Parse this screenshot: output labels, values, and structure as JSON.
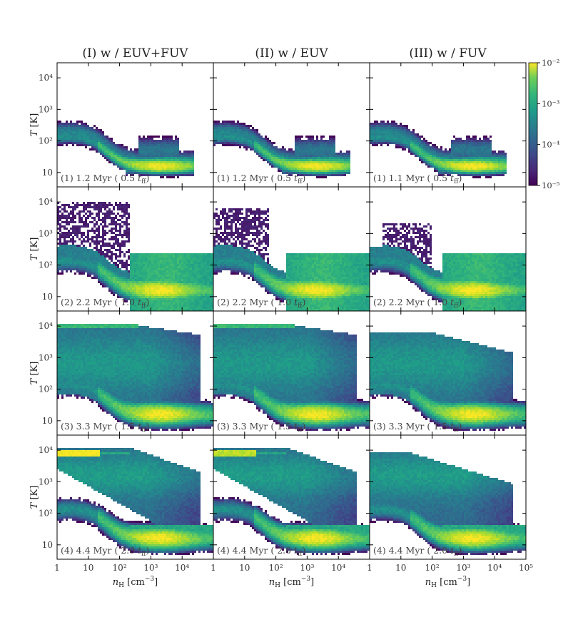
{
  "chart_data": {
    "type": "heatmap",
    "grid": {
      "rows": 4,
      "cols": 3
    },
    "column_titles": [
      "(I) w / EUV+FUV",
      "(II) w / EUV",
      "(III) w / FUV"
    ],
    "xlabel": "n_H [cm^-3]",
    "ylabel": "T [K]",
    "x_scale": "log",
    "y_scale": "log",
    "xlim": [
      1,
      100000
    ],
    "ylim": [
      3.5,
      30000
    ],
    "x_ticks": [
      {
        "value": 1,
        "label": "1"
      },
      {
        "value": 10,
        "label": "10"
      },
      {
        "value": 100,
        "label": "10²"
      },
      {
        "value": 1000,
        "label": "10³"
      },
      {
        "value": 10000,
        "label": "10⁴"
      }
    ],
    "x_tick_last_col_extra": {
      "value": 100000,
      "label": "10⁵"
    },
    "y_ticks": [
      {
        "value": 10,
        "label": "10"
      },
      {
        "value": 100,
        "label": "10²"
      },
      {
        "value": 1000,
        "label": "10³"
      },
      {
        "value": 10000,
        "label": "10⁴"
      }
    ],
    "colorbar": {
      "scale": "log",
      "range": [
        1e-05,
        0.01
      ],
      "tick_labels": [
        "10⁻²",
        "10⁻³",
        "10⁻⁴",
        "10⁻⁵"
      ],
      "colormap": "viridis"
    },
    "panels": [
      {
        "row": 1,
        "col": 1,
        "label": "(1) 1.2 Myr ( 0.5 t_ff)"
      },
      {
        "row": 1,
        "col": 2,
        "label": "(1) 1.2 Myr ( 0.5 t_ff)"
      },
      {
        "row": 1,
        "col": 3,
        "label": "(1) 1.1 Myr ( 0.5 t_ff)"
      },
      {
        "row": 2,
        "col": 1,
        "label": "(2) 2.2 Myr ( 1.0 t_ff)"
      },
      {
        "row": 2,
        "col": 2,
        "label": "(2) 2.2 Myr ( 1.0 t_ff)"
      },
      {
        "row": 2,
        "col": 3,
        "label": "(2) 2.2 Myr ( 1.0 t_ff)"
      },
      {
        "row": 3,
        "col": 1,
        "label": "(3) 3.3 Myr ( 1.5 t_ff)"
      },
      {
        "row": 3,
        "col": 2,
        "label": "(3) 3.3 Myr ( 1.5 t_ff)"
      },
      {
        "row": 3,
        "col": 3,
        "label": "(3) 3.3 Myr ( 1.5 t_ff)"
      },
      {
        "row": 4,
        "col": 1,
        "label": "(4) 4.4 Myr ( 2.0 t_ff)"
      },
      {
        "row": 4,
        "col": 2,
        "label": "(4) 4.4 Myr ( 2.0 t_ff)"
      },
      {
        "row": 4,
        "col": 3,
        "label": "(4) 4.4 Myr ( 2.0 t_ff)"
      }
    ]
  }
}
